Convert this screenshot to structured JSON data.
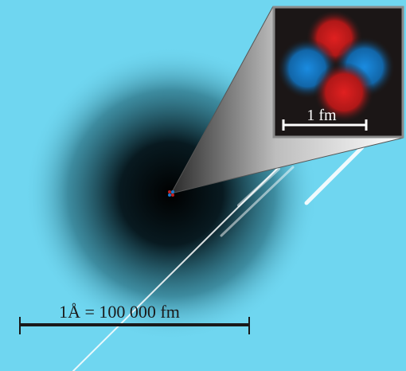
{
  "inset": {
    "scale_label": "1 fm"
  },
  "atom": {
    "scale_label": "1Å = 100 000 fm"
  }
}
